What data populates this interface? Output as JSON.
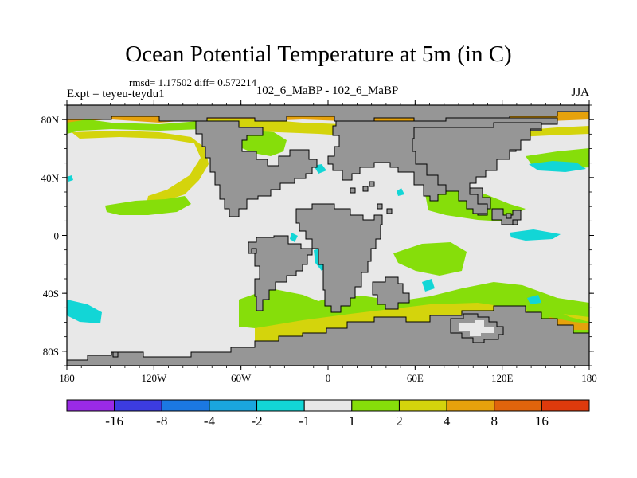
{
  "header": {
    "title": "Ocean Potential Temperature at 5m (in C)",
    "stats": "rmsd= 1.17502 diff= 0.572214",
    "expt": "Expt = teyeu-teydu1",
    "center_label": "102_6_MaBP - 102_6_MaBP",
    "season": "JJA"
  },
  "chart_data": {
    "type": "heatmap",
    "title": "Ocean Potential Temperature at 5m (in C)",
    "xlabel": "",
    "ylabel": "",
    "xlim": [
      -180,
      180
    ],
    "ylim": [
      -90,
      90
    ],
    "x_ticks": [
      {
        "value": -180,
        "label": "180"
      },
      {
        "value": -120,
        "label": "120W"
      },
      {
        "value": -60,
        "label": "60W"
      },
      {
        "value": 0,
        "label": "0"
      },
      {
        "value": 60,
        "label": "60E"
      },
      {
        "value": 120,
        "label": "120E"
      },
      {
        "value": 180,
        "label": "180"
      }
    ],
    "y_ticks": [
      {
        "value": 80,
        "label": "80N"
      },
      {
        "value": 40,
        "label": "40N"
      },
      {
        "value": 0,
        "label": "0"
      },
      {
        "value": -40,
        "label": "40S"
      },
      {
        "value": -80,
        "label": "80S"
      }
    ],
    "colorbar": {
      "boundaries": [
        "-16",
        "-8",
        "-4",
        "-2",
        "-1",
        "1",
        "2",
        "4",
        "8",
        "16"
      ],
      "colors": [
        "#9a2ae6",
        "#3c3ce0",
        "#1b78e2",
        "#1aa6de",
        "#12d6d6",
        "#e8e8e8",
        "#86de0a",
        "#d4d40c",
        "#e6a20c",
        "#e0640c",
        "#de3a0c"
      ]
    },
    "colors": {
      "land": "#969696",
      "neutral": "#e8e8e8",
      "frame": "#000000"
    }
  }
}
